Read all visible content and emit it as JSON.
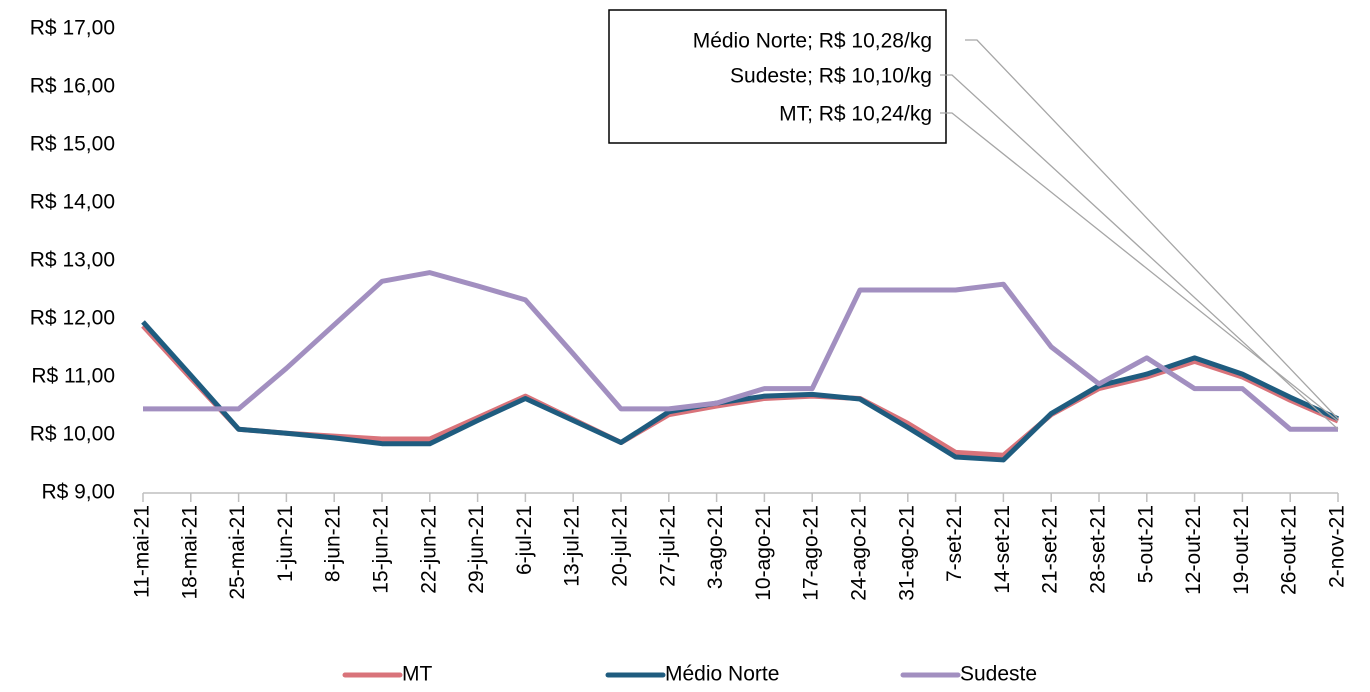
{
  "chart_data": {
    "type": "line",
    "categories": [
      "11-mai-21",
      "18-mai-21",
      "25-mai-21",
      "1-jun-21",
      "8-jun-21",
      "15-jun-21",
      "22-jun-21",
      "29-jun-21",
      "6-jul-21",
      "13-jul-21",
      "20-jul-21",
      "27-jul-21",
      "3-ago-21",
      "10-ago-21",
      "17-ago-21",
      "24-ago-21",
      "31-ago-21",
      "7-set-21",
      "14-set-21",
      "21-set-21",
      "28-set-21",
      "5-out-21",
      "12-out-21",
      "19-out-21",
      "26-out-21",
      "2-nov-21"
    ],
    "series": [
      {
        "name": "MT",
        "color": "#d9737a",
        "values": [
          11.88,
          10.98,
          10.1,
          10.03,
          9.98,
          9.93,
          9.93,
          10.3,
          10.67,
          10.27,
          9.87,
          10.35,
          10.5,
          10.63,
          10.67,
          10.63,
          10.2,
          9.7,
          9.65,
          10.35,
          10.8,
          11.0,
          11.27,
          11.0,
          10.6,
          10.24
        ]
      },
      {
        "name": "Médio Norte",
        "color": "#1f5c7f",
        "values": [
          11.95,
          11.03,
          10.1,
          10.03,
          9.95,
          9.85,
          9.85,
          10.25,
          10.63,
          10.25,
          9.87,
          10.4,
          10.55,
          10.67,
          10.7,
          10.62,
          10.13,
          9.62,
          9.57,
          10.37,
          10.85,
          11.05,
          11.33,
          11.05,
          10.65,
          10.28
        ]
      },
      {
        "name": "Sudeste",
        "color": "#a28fc0",
        "values": [
          10.45,
          10.45,
          10.45,
          11.15,
          11.9,
          12.65,
          12.8,
          12.57,
          12.33,
          11.4,
          10.45,
          10.45,
          10.55,
          10.8,
          10.8,
          12.5,
          12.5,
          12.5,
          12.6,
          11.52,
          10.88,
          11.33,
          10.8,
          10.8,
          10.1,
          10.1
        ]
      }
    ],
    "ylim": [
      9,
      17
    ],
    "yticks": [
      {
        "value": 9,
        "label": "R$ 9,00"
      },
      {
        "value": 10,
        "label": "R$ 10,00"
      },
      {
        "value": 11,
        "label": "R$ 11,00"
      },
      {
        "value": 12,
        "label": "R$ 12,00"
      },
      {
        "value": 13,
        "label": "R$ 13,00"
      },
      {
        "value": 14,
        "label": "R$ 14,00"
      },
      {
        "value": 15,
        "label": "R$ 15,00"
      },
      {
        "value": 16,
        "label": "R$ 16,00"
      },
      {
        "value": 17,
        "label": "R$ 17,00"
      }
    ],
    "grid": false,
    "legend": "bottom",
    "annotations": [
      {
        "text": "Médio Norte; R$ 10,28/kg"
      },
      {
        "text": "Sudeste; R$ 10,10/kg"
      },
      {
        "text": "MT; R$ 10,24/kg"
      }
    ]
  }
}
